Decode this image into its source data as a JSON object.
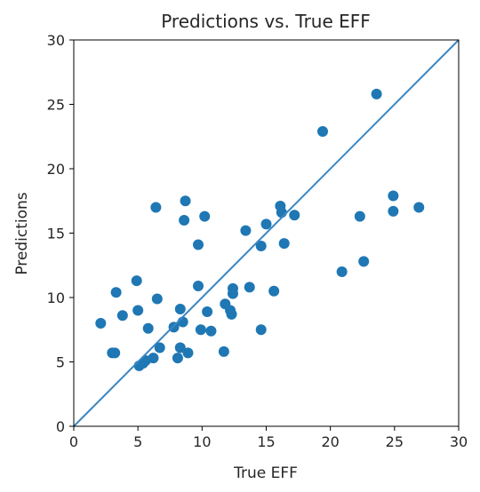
{
  "chart_data": {
    "type": "scatter",
    "title": "Predictions vs. True EFF",
    "xlabel": "True EFF",
    "ylabel": "Predictions",
    "xlim": [
      0,
      30
    ],
    "ylim": [
      0,
      30
    ],
    "xticks": [
      "0",
      "5",
      "10",
      "15",
      "20",
      "25",
      "30"
    ],
    "yticks": [
      "0",
      "5",
      "10",
      "15",
      "20",
      "25",
      "30"
    ],
    "grid": false,
    "reference_line": {
      "from": [
        0,
        0
      ],
      "to": [
        30,
        30
      ]
    },
    "point_color": "#1f77b4",
    "line_color": "#3a86c2",
    "points": [
      [
        2.1,
        8.0
      ],
      [
        3.0,
        5.7
      ],
      [
        3.2,
        5.7
      ],
      [
        3.3,
        10.4
      ],
      [
        3.8,
        8.6
      ],
      [
        4.9,
        11.3
      ],
      [
        5.0,
        9.0
      ],
      [
        5.1,
        4.7
      ],
      [
        5.4,
        4.9
      ],
      [
        5.6,
        5.1
      ],
      [
        5.8,
        7.6
      ],
      [
        6.2,
        5.3
      ],
      [
        6.4,
        17.0
      ],
      [
        6.5,
        9.9
      ],
      [
        6.7,
        6.1
      ],
      [
        7.8,
        7.7
      ],
      [
        8.1,
        5.3
      ],
      [
        8.3,
        9.1
      ],
      [
        8.3,
        6.1
      ],
      [
        8.5,
        8.1
      ],
      [
        8.6,
        16.0
      ],
      [
        8.7,
        17.5
      ],
      [
        8.9,
        5.7
      ],
      [
        9.7,
        10.9
      ],
      [
        9.7,
        14.1
      ],
      [
        9.9,
        7.5
      ],
      [
        10.2,
        16.3
      ],
      [
        10.4,
        8.9
      ],
      [
        10.7,
        7.4
      ],
      [
        11.7,
        5.8
      ],
      [
        11.8,
        9.5
      ],
      [
        12.2,
        9.0
      ],
      [
        12.3,
        8.7
      ],
      [
        12.4,
        10.3
      ],
      [
        12.4,
        10.7
      ],
      [
        13.4,
        15.2
      ],
      [
        13.7,
        10.8
      ],
      [
        14.6,
        7.5
      ],
      [
        14.6,
        14.0
      ],
      [
        15.0,
        15.7
      ],
      [
        15.6,
        10.5
      ],
      [
        16.1,
        17.1
      ],
      [
        16.2,
        16.6
      ],
      [
        16.4,
        14.2
      ],
      [
        17.2,
        16.4
      ],
      [
        19.4,
        22.9
      ],
      [
        20.9,
        12.0
      ],
      [
        22.3,
        16.3
      ],
      [
        22.6,
        12.8
      ],
      [
        23.6,
        25.8
      ],
      [
        24.9,
        16.7
      ],
      [
        24.9,
        17.9
      ],
      [
        26.9,
        17.0
      ]
    ]
  }
}
